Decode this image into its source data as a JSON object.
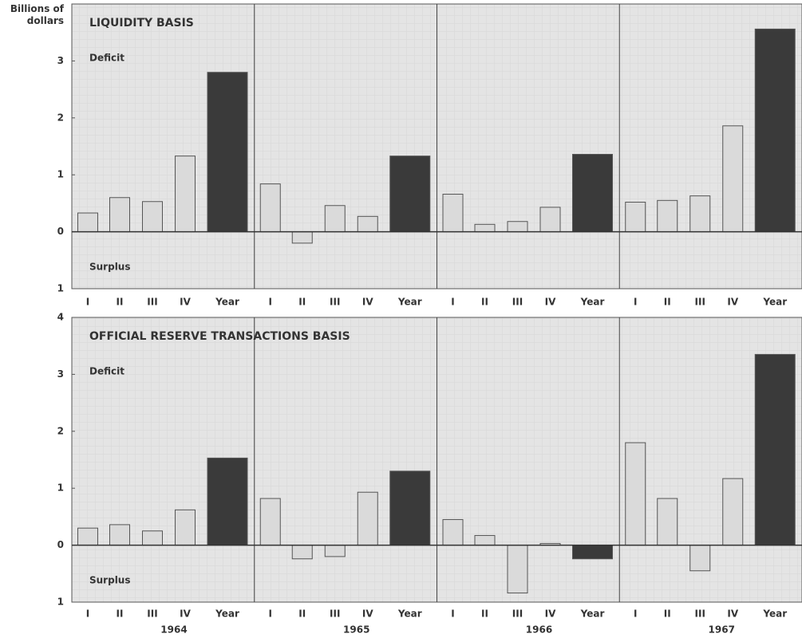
{
  "chart_data": [
    {
      "type": "bar",
      "title": "LIQUIDITY BASIS",
      "ylabel": "Billions of dollars",
      "annotations": [
        "Deficit",
        "Surplus"
      ],
      "categories": [
        "I",
        "II",
        "III",
        "IV",
        "Year",
        "I",
        "II",
        "III",
        "IV",
        "Year",
        "I",
        "II",
        "III",
        "IV",
        "Year",
        "I",
        "II",
        "III",
        "IV",
        "Year"
      ],
      "values": [
        0.33,
        0.6,
        0.53,
        1.33,
        2.8,
        0.84,
        -0.2,
        0.46,
        0.27,
        1.33,
        0.66,
        0.13,
        0.18,
        0.43,
        1.36,
        0.52,
        0.55,
        0.63,
        1.86,
        3.56
      ],
      "color": "#dadada",
      "highlight_color": "#3a3a3a",
      "ylim": [
        -1,
        4
      ],
      "yticks": [
        {
          "value": -1,
          "label": "1"
        },
        0,
        1,
        2,
        3
      ]
    },
    {
      "type": "bar",
      "title": "OFFICIAL RESERVE TRANSACTIONS BASIS",
      "annotations": [
        "Deficit",
        "Surplus"
      ],
      "categories": [
        "I",
        "II",
        "III",
        "IV",
        "Year",
        "I",
        "II",
        "III",
        "IV",
        "Year",
        "I",
        "II",
        "III",
        "IV",
        "Year",
        "I",
        "II",
        "III",
        "IV",
        "Year"
      ],
      "groups": [
        "1964",
        "1965",
        "1966",
        "1967"
      ],
      "values": [
        0.3,
        0.36,
        0.25,
        0.62,
        1.53,
        0.82,
        -0.24,
        -0.2,
        0.93,
        1.3,
        0.45,
        0.17,
        -0.84,
        0.03,
        -0.24,
        1.8,
        0.82,
        -0.45,
        1.17,
        3.35
      ],
      "color": "#dadada",
      "highlight_color": "#3a3a3a",
      "ylim": [
        -1,
        4
      ],
      "yticks": [
        {
          "value": -1,
          "label": "1"
        },
        0,
        1,
        2,
        3,
        4
      ]
    }
  ]
}
